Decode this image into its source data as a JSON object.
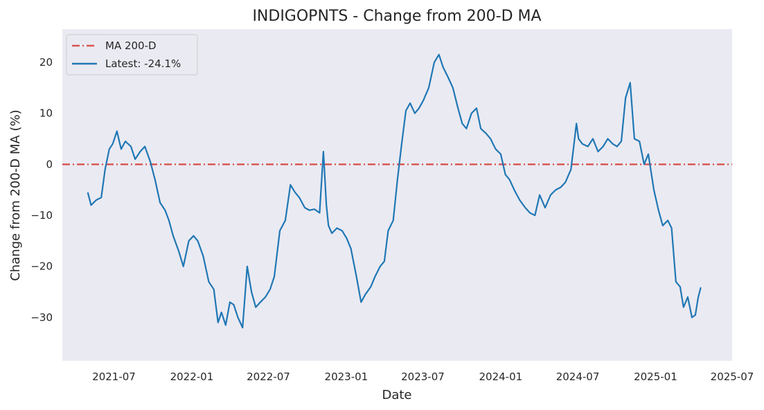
{
  "chart_data": {
    "type": "line",
    "title": "INDIGOPNTS - Change from 200-D MA",
    "xlabel": "Date",
    "ylabel": "Change from 200-D MA (%)",
    "xlim": [
      "2021-03-01",
      "2025-07-01"
    ],
    "ylim": [
      -38.5,
      26.5
    ],
    "x_ticks": [
      "2021-07",
      "2022-01",
      "2022-07",
      "2023-01",
      "2023-07",
      "2024-01",
      "2024-07",
      "2025-01",
      "2025-07"
    ],
    "y_ticks": [
      -30,
      -20,
      -10,
      0,
      10,
      20
    ],
    "grid": false,
    "legend_position": "top-left",
    "colors": {
      "background": "#eaeaf2",
      "line": "#1f77b4",
      "reference": "#d9534f"
    },
    "reference_line": {
      "label": "MA 200-D",
      "y": 0
    },
    "series": [
      {
        "name": "Latest: -24.1%",
        "x": [
          "2021-04-30",
          "2021-05-08",
          "2021-05-20",
          "2021-06-01",
          "2021-06-10",
          "2021-06-20",
          "2021-06-28",
          "2021-07-08",
          "2021-07-18",
          "2021-07-28",
          "2021-08-10",
          "2021-08-20",
          "2021-09-01",
          "2021-09-12",
          "2021-09-25",
          "2021-10-06",
          "2021-10-18",
          "2021-10-30",
          "2021-11-08",
          "2021-11-18",
          "2021-12-01",
          "2021-12-12",
          "2021-12-25",
          "2022-01-05",
          "2022-01-15",
          "2022-01-28",
          "2022-02-10",
          "2022-02-22",
          "2022-03-04",
          "2022-03-12",
          "2022-03-22",
          "2022-04-01",
          "2022-04-10",
          "2022-04-20",
          "2022-05-01",
          "2022-05-12",
          "2022-05-22",
          "2022-06-01",
          "2022-06-12",
          "2022-06-24",
          "2022-07-05",
          "2022-07-15",
          "2022-07-28",
          "2022-08-10",
          "2022-08-22",
          "2022-09-02",
          "2022-09-12",
          "2022-09-25",
          "2022-10-06",
          "2022-10-18",
          "2022-10-30",
          "2022-11-08",
          "2022-11-15",
          "2022-11-20",
          "2022-11-28",
          "2022-12-10",
          "2022-12-22",
          "2023-01-02",
          "2023-01-12",
          "2023-01-25",
          "2023-02-05",
          "2023-02-15",
          "2023-02-28",
          "2023-03-10",
          "2023-03-22",
          "2023-04-01",
          "2023-04-10",
          "2023-04-22",
          "2023-05-02",
          "2023-05-12",
          "2023-05-22",
          "2023-06-01",
          "2023-06-12",
          "2023-06-22",
          "2023-07-02",
          "2023-07-15",
          "2023-07-28",
          "2023-08-08",
          "2023-08-18",
          "2023-08-30",
          "2023-09-10",
          "2023-09-22",
          "2023-10-02",
          "2023-10-12",
          "2023-10-24",
          "2023-11-05",
          "2023-11-15",
          "2023-11-28",
          "2023-12-08",
          "2023-12-20",
          "2024-01-01",
          "2024-01-12",
          "2024-01-22",
          "2024-02-02",
          "2024-02-15",
          "2024-02-28",
          "2024-03-10",
          "2024-03-22",
          "2024-04-02",
          "2024-04-15",
          "2024-04-28",
          "2024-05-10",
          "2024-05-22",
          "2024-06-02",
          "2024-06-15",
          "2024-06-28",
          "2024-07-03",
          "2024-07-12",
          "2024-07-25",
          "2024-08-06",
          "2024-08-18",
          "2024-08-30",
          "2024-09-10",
          "2024-09-22",
          "2024-10-02",
          "2024-10-12",
          "2024-10-22",
          "2024-11-02",
          "2024-11-12",
          "2024-11-24",
          "2024-12-05",
          "2024-12-15",
          "2024-12-28",
          "2025-01-08",
          "2025-01-18",
          "2025-01-30",
          "2025-02-08",
          "2025-02-18",
          "2025-02-28",
          "2025-03-08",
          "2025-03-18",
          "2025-03-28",
          "2025-04-05",
          "2025-04-12",
          "2025-04-18"
        ],
        "values": [
          -5.5,
          -8,
          -7,
          -6.5,
          -1,
          3,
          4,
          6.5,
          3,
          4.5,
          3.5,
          1,
          2.5,
          3.5,
          0.5,
          -3,
          -7.5,
          -9,
          -11,
          -14,
          -17,
          -20,
          -15,
          -14,
          -15,
          -18,
          -23,
          -24.5,
          -31,
          -29,
          -31.5,
          -27,
          -27.5,
          -30,
          -32,
          -20,
          -25,
          -28,
          -27,
          -26,
          -24.5,
          -22,
          -13,
          -11,
          -4,
          -5.5,
          -6.5,
          -8.5,
          -9,
          -8.8,
          -9.5,
          2.5,
          -8,
          -12,
          -13.5,
          -12.5,
          -13,
          -14.5,
          -16.5,
          -22,
          -27,
          -25.5,
          -24,
          -22,
          -20,
          -19,
          -13,
          -11,
          -3,
          4,
          10.5,
          12,
          10,
          11,
          12.5,
          15,
          20,
          21.5,
          19,
          17,
          15,
          11,
          8,
          7,
          10,
          11,
          7,
          6,
          5,
          3,
          2,
          -2,
          -3,
          -5,
          -7,
          -8.5,
          -9.5,
          -10,
          -6,
          -8.5,
          -6,
          -5,
          -4.5,
          -3.5,
          -1,
          8,
          5,
          4,
          3.5,
          5,
          2.5,
          3.5,
          5,
          4,
          3.5,
          4.5,
          13,
          16,
          5,
          4.5,
          0,
          2,
          -5,
          -9,
          -12,
          -11,
          -12.5,
          -23,
          -24,
          -28,
          -26,
          -30,
          -29.5,
          -26,
          -24.1
        ]
      }
    ]
  }
}
